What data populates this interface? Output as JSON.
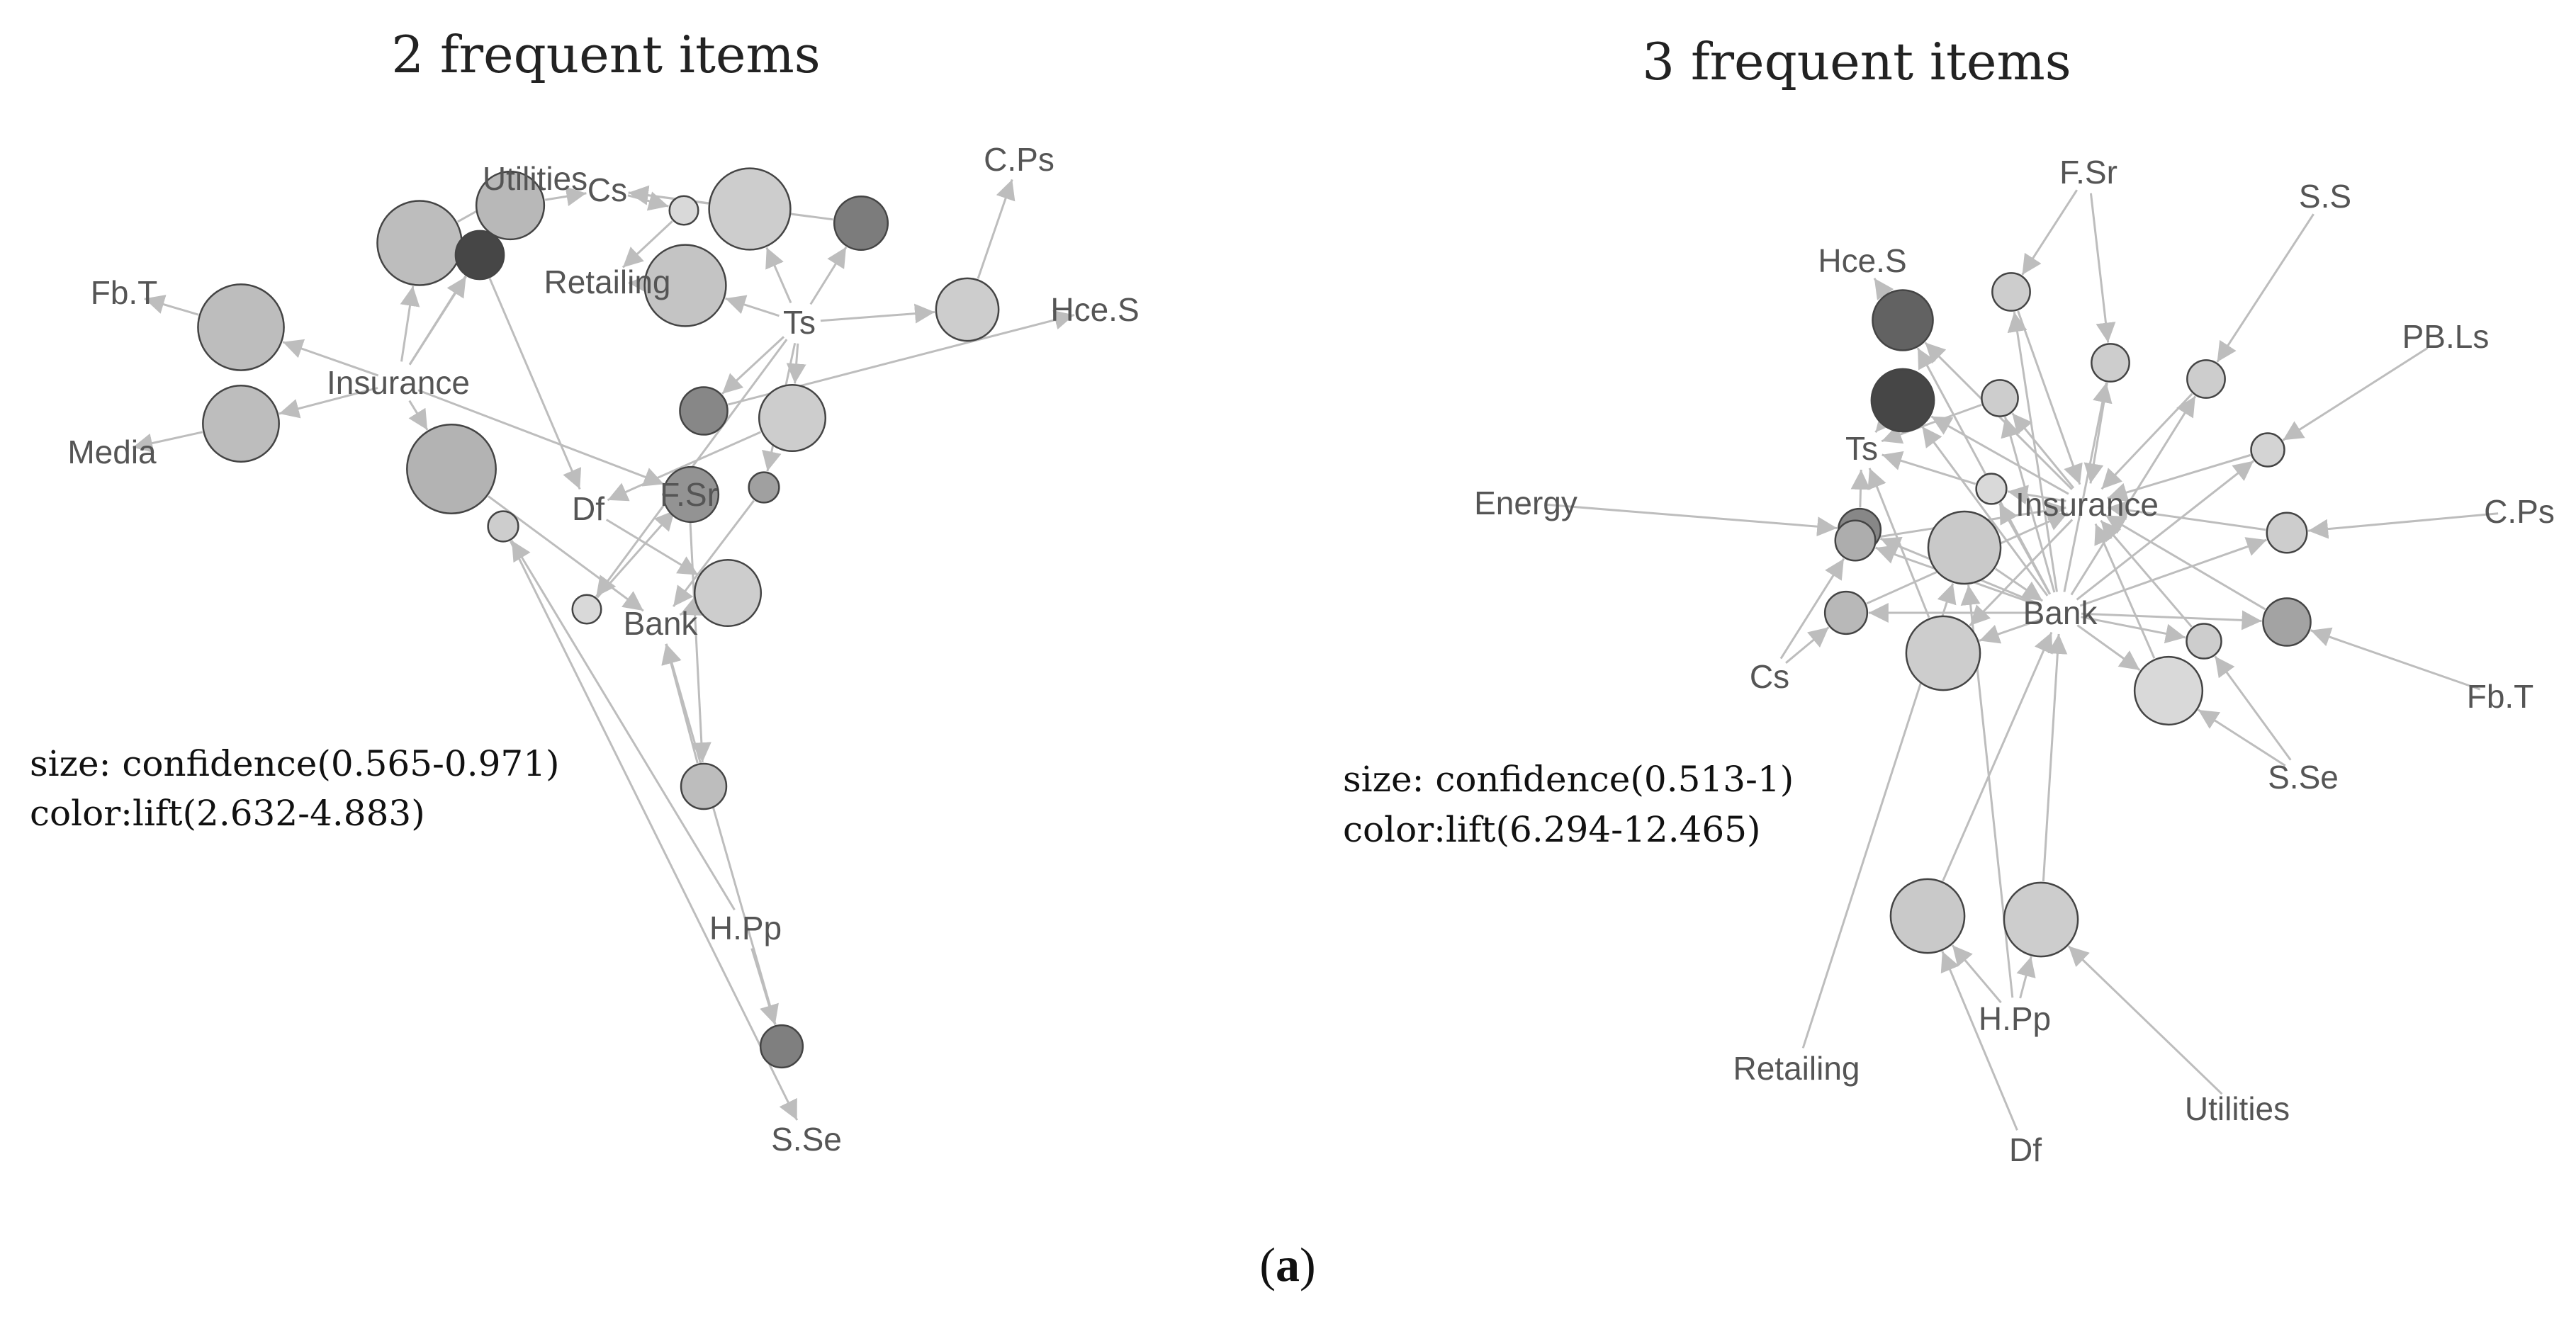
{
  "figure": {
    "caption_letter": "a",
    "panels": [
      {
        "id": "p2",
        "title": "2 frequent items",
        "legend": [
          "size: confidence(0.565-0.971)",
          "color:lift(2.632-4.883)"
        ],
        "items": [
          {
            "id": "Utilities",
            "label": "Utilities"
          },
          {
            "id": "Cs",
            "label": "Cs"
          },
          {
            "id": "Retailing",
            "label": "Retailing"
          },
          {
            "id": "FbT",
            "label": "Fb.T"
          },
          {
            "id": "Insurance",
            "label": "Insurance"
          },
          {
            "id": "Media",
            "label": "Media"
          },
          {
            "id": "Df",
            "label": "Df"
          },
          {
            "id": "FSr",
            "label": "F.Sr"
          },
          {
            "id": "Ts",
            "label": "Ts"
          },
          {
            "id": "CPs",
            "label": "C.Ps"
          },
          {
            "id": "HceS",
            "label": "Hce.S"
          },
          {
            "id": "Bank",
            "label": "Bank"
          },
          {
            "id": "HPp",
            "label": "H.Pp"
          },
          {
            "id": "SSe",
            "label": "S.Se"
          }
        ],
        "rules": [
          {
            "from": [
              "Insurance"
            ],
            "to": "Utilities",
            "size": 0.84,
            "shade": 0.22
          },
          {
            "from": [
              "Insurance"
            ],
            "to": "Cs",
            "size": 0.62,
            "shade": 0.25
          },
          {
            "from": [
              "Insurance"
            ],
            "to": "FbT",
            "size": 0.86,
            "shade": 0.22
          },
          {
            "from": [
              "Insurance"
            ],
            "to": "Media",
            "size": 0.73,
            "shade": 0.22
          },
          {
            "from": [
              "Insurance"
            ],
            "to": "Bank",
            "size": 0.9,
            "shade": 0.28
          },
          {
            "from": [
              "Insurance"
            ],
            "to": "FSr",
            "size": 0.45,
            "shade": 0.48
          },
          {
            "from": [
              "Insurance"
            ],
            "to": "Df",
            "size": 0.36,
            "shade": 0.95
          },
          {
            "from": [
              "Cs"
            ],
            "to": "Retailing",
            "size": 0.1,
            "shade": 0.05
          },
          {
            "from": [
              "Ts"
            ],
            "to": "Cs",
            "size": 0.8,
            "shade": 0.12
          },
          {
            "from": [
              "Ts"
            ],
            "to": "Retailing",
            "size": 0.8,
            "shade": 0.18
          },
          {
            "from": [
              "Ts"
            ],
            "to": "Cs",
            "size": 0.43,
            "shade": 0.62
          },
          {
            "from": [
              "Ts"
            ],
            "to": "CPs",
            "size": 0.55,
            "shade": 0.12
          },
          {
            "from": [
              "Ts"
            ],
            "to": "HceS",
            "size": 0.35,
            "shade": 0.55
          },
          {
            "from": [
              "Ts"
            ],
            "to": "Df",
            "size": 0.6,
            "shade": 0.12
          },
          {
            "from": [
              "Ts"
            ],
            "to": "FSr",
            "size": 0.1,
            "shade": 0.05
          },
          {
            "from": [
              "Ts"
            ],
            "to": "Bank",
            "size": 0.12,
            "shade": 0.4
          },
          {
            "from": [
              "Df"
            ],
            "to": "Bank",
            "size": 0.6,
            "shade": 0.12
          },
          {
            "from": [
              "FSr"
            ],
            "to": "Bank",
            "size": 0.32,
            "shade": 0.22
          },
          {
            "from": [
              "HPp"
            ],
            "to": "Bank",
            "size": 0.28,
            "shade": 0.6
          },
          {
            "from": [
              "HPp"
            ],
            "to": "SSe",
            "size": 0.12,
            "shade": 0.12
          }
        ]
      },
      {
        "id": "p3",
        "title": "3 frequent items",
        "legend": [
          "size: confidence(0.513-1)",
          "color:lift(6.294-12.465)"
        ],
        "items": [
          {
            "id": "FSr",
            "label": "F.Sr"
          },
          {
            "id": "SS",
            "label": "S.S"
          },
          {
            "id": "HceS",
            "label": "Hce.S"
          },
          {
            "id": "PBLs",
            "label": "PB.Ls"
          },
          {
            "id": "Ts",
            "label": "Ts"
          },
          {
            "id": "Energy",
            "label": "Energy"
          },
          {
            "id": "Insurance",
            "label": "Insurance"
          },
          {
            "id": "CPs",
            "label": "C.Ps"
          },
          {
            "id": "Bank",
            "label": "Bank"
          },
          {
            "id": "Cs",
            "label": "Cs"
          },
          {
            "id": "FbT",
            "label": "Fb.T"
          },
          {
            "id": "SSe",
            "label": "S.Se"
          },
          {
            "id": "Retailing",
            "label": "Retailing"
          },
          {
            "id": "HPp",
            "label": "H.Pp"
          },
          {
            "id": "Df",
            "label": "Df"
          },
          {
            "id": "Utilities",
            "label": "Utilities"
          }
        ],
        "rules": [
          {
            "from": [
              "Insurance",
              "Bank"
            ],
            "to": "HceS",
            "size": 0.52,
            "shade": 0.78
          },
          {
            "from": [
              "Insurance",
              "Bank"
            ],
            "to": "Ts",
            "size": 0.55,
            "shade": 0.95
          },
          {
            "from": [
              "FSr",
              "Bank"
            ],
            "to": "Insurance",
            "size": 0.22,
            "shade": 0.12
          },
          {
            "from": [
              "FSr",
              "Bank"
            ],
            "to": "Insurance",
            "size": 0.22,
            "shade": 0.12
          },
          {
            "from": [
              "SS",
              "Bank"
            ],
            "to": "Insurance",
            "size": 0.22,
            "shade": 0.12
          },
          {
            "from": [
              "PBLs",
              "Bank"
            ],
            "to": "Insurance",
            "size": 0.16,
            "shade": 0.08
          },
          {
            "from": [
              "CPs",
              "Bank"
            ],
            "to": "Insurance",
            "size": 0.25,
            "shade": 0.12
          },
          {
            "from": [
              "FbT",
              "Bank"
            ],
            "to": "Insurance",
            "size": 0.35,
            "shade": 0.38
          },
          {
            "from": [
              "SSe",
              "Bank"
            ],
            "to": "Insurance",
            "size": 0.62,
            "shade": 0.05
          },
          {
            "from": [
              "SSe",
              "Bank"
            ],
            "to": "Insurance",
            "size": 0.18,
            "shade": 0.12
          },
          {
            "from": [
              "Insurance",
              "Bank"
            ],
            "to": "Ts",
            "size": 0.2,
            "shade": 0.12
          },
          {
            "from": [
              "Insurance",
              "Bank"
            ],
            "to": "Ts",
            "size": 0.12,
            "shade": 0.05
          },
          {
            "from": [
              "Energy",
              "Bank"
            ],
            "to": "Ts",
            "size": 0.28,
            "shade": 0.55
          },
          {
            "from": [
              "Cs",
              "Bank"
            ],
            "to": "Insurance",
            "size": 0.25,
            "shade": 0.32
          },
          {
            "from": [
              "Cs",
              "Bank"
            ],
            "to": "Insurance",
            "size": 0.28,
            "shade": 0.25
          },
          {
            "from": [
              "Insurance",
              "Bank"
            ],
            "to": "Ts",
            "size": 0.7,
            "shade": 0.12
          },
          {
            "from": [
              "Retailing",
              "HPp"
            ],
            "to": "Bank",
            "size": 0.68,
            "shade": 0.15
          },
          {
            "from": [
              "HPp",
              "Df"
            ],
            "to": "Bank",
            "size": 0.7,
            "shade": 0.15
          },
          {
            "from": [
              "Utilities",
              "HPp"
            ],
            "to": "Bank",
            "size": 0.7,
            "shade": 0.12
          }
        ]
      }
    ]
  }
}
